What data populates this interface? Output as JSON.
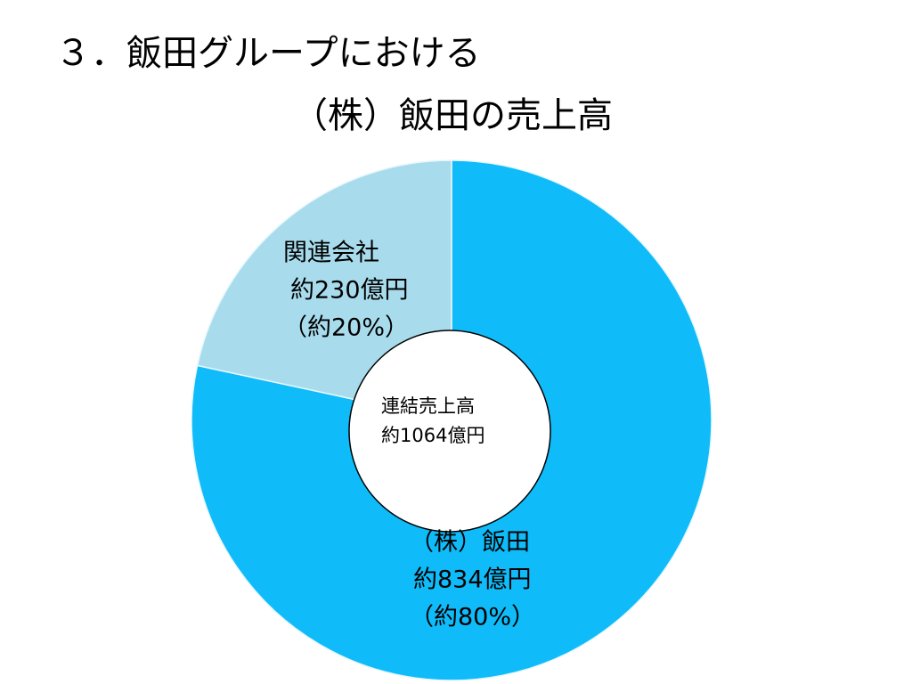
{
  "chart_data": {
    "type": "donut",
    "title": [
      "３．飯田グループにおける",
      "（株）飯田の売上高"
    ],
    "categories": [
      "（株）飯田",
      "関連会社"
    ],
    "values": [
      834,
      230
    ],
    "value_labels": [
      "約834億円",
      "約230億円"
    ],
    "percent_labels": [
      "（約80%）",
      "（約20%）"
    ],
    "colors": [
      "#0fbcf9",
      "#a8dced"
    ],
    "center_label": [
      "連結売上高",
      "約1064億円"
    ]
  }
}
